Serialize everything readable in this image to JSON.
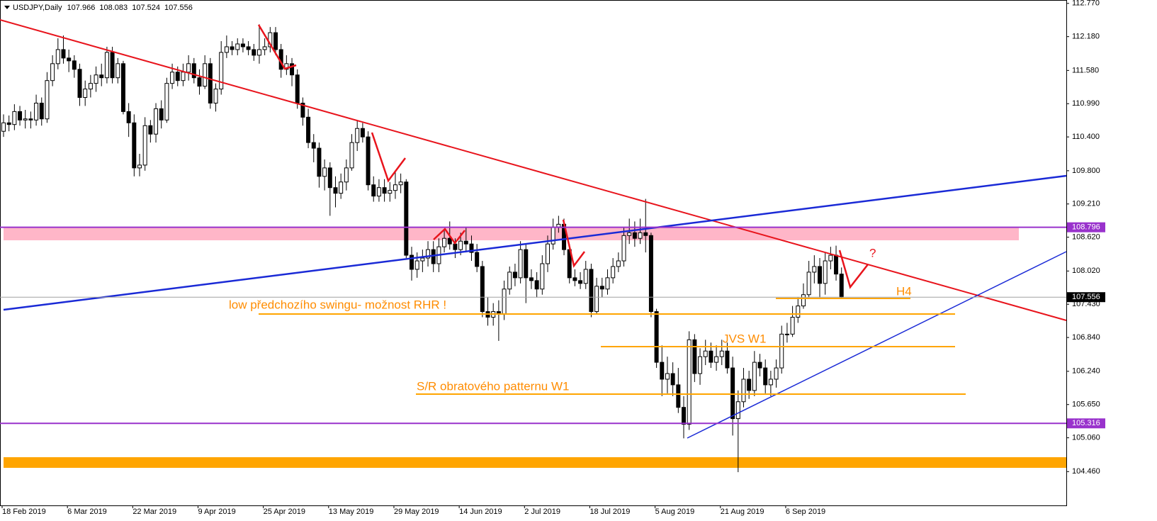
{
  "chart_data": {
    "type": "candlestick",
    "title": "USDJPY,Daily",
    "categories": [
      "18 Feb 2019",
      null,
      null,
      null,
      null,
      null,
      null,
      null,
      null,
      null,
      null,
      null,
      "6 Mar 2019",
      null,
      null,
      null,
      null,
      null,
      null,
      null,
      null,
      null,
      null,
      null,
      "22 Mar 2019",
      null,
      null,
      null,
      null,
      null,
      null,
      null,
      null,
      null,
      null,
      null,
      "9 Apr 2019",
      null,
      null,
      null,
      null,
      null,
      null,
      null,
      null,
      null,
      null,
      null,
      "25 Apr 2019",
      null,
      null,
      null,
      null,
      null,
      null,
      null,
      null,
      null,
      null,
      null,
      "13 May 2019",
      null,
      null,
      null,
      null,
      null,
      null,
      null,
      null,
      null,
      null,
      null,
      "29 May 2019",
      null,
      null,
      null,
      null,
      null,
      null,
      null,
      null,
      null,
      null,
      null,
      "14 Jun 2019",
      null,
      null,
      null,
      null,
      null,
      null,
      null,
      null,
      null,
      null,
      null,
      "2 Jul 2019",
      null,
      null,
      null,
      null,
      null,
      null,
      null,
      null,
      null,
      null,
      null,
      "18 Jul 2019",
      null,
      null,
      null,
      null,
      null,
      null,
      null,
      null,
      null,
      null,
      null,
      "5 Aug 2019",
      null,
      null,
      null,
      null,
      null,
      null,
      null,
      null,
      null,
      null,
      null,
      "21 Aug 2019",
      null,
      null,
      null,
      null,
      null,
      null,
      null,
      null,
      null,
      null,
      null,
      "6 Sep 2019",
      null,
      null,
      null,
      null,
      null,
      null,
      null,
      null,
      null,
      null
    ],
    "open": [
      110.5,
      110.65,
      110.62,
      110.85,
      110.7,
      110.72,
      110.7,
      111.0,
      110.72,
      111.4,
      111.7,
      111.95,
      111.8,
      111.75,
      111.6,
      111.1,
      111.25,
      111.35,
      111.5,
      111.45,
      111.9,
      111.45,
      111.7,
      110.85,
      110.65,
      109.85,
      109.9,
      110.6,
      110.45,
      110.9,
      110.7,
      111.35,
      111.55,
      111.4,
      111.55,
      111.7,
      111.45,
      111.3,
      111.7,
      111.0,
      111.25,
      111.9,
      112.0,
      111.95,
      112.05,
      112.0,
      111.95,
      111.85,
      111.95,
      112.0,
      112.25,
      111.95,
      111.6,
      111.7,
      111.5,
      111.0,
      110.75,
      110.3,
      110.2,
      109.7,
      109.85,
      109.5,
      109.4,
      109.6,
      109.85,
      110.3,
      110.55,
      110.4,
      109.55,
      109.35,
      109.5,
      109.4,
      109.45,
      109.55,
      109.6,
      108.3,
      108.05,
      108.2,
      108.25,
      108.4,
      108.15,
      108.45,
      108.6,
      108.5,
      108.4,
      108.55,
      108.5,
      108.35,
      108.1,
      107.3,
      107.2,
      107.3,
      107.25,
      107.7,
      108.0,
      107.9,
      108.4,
      107.9,
      107.85,
      107.7,
      108.15,
      108.5,
      108.8,
      108.85,
      108.4,
      107.9,
      107.85,
      107.8,
      108.05,
      107.3,
      107.75,
      107.7,
      107.9,
      108.1,
      108.2,
      108.65,
      108.7,
      108.6,
      108.7,
      108.65,
      107.3,
      106.4,
      106.1,
      106.2,
      106.0,
      105.6,
      105.3,
      106.8,
      106.2,
      106.5,
      106.6,
      106.4,
      106.5,
      106.6,
      106.3,
      105.4,
      105.7,
      106.1,
      105.9,
      106.4,
      106.3,
      106.0,
      106.1,
      106.3,
      106.9,
      106.9,
      107.2,
      107.4,
      107.6,
      108.0,
      108.1,
      107.8,
      108.2,
      108.3,
      107.966
    ],
    "high": [
      110.8,
      110.78,
      110.98,
      110.95,
      110.88,
      110.85,
      111.15,
      111.1,
      111.55,
      111.85,
      112.15,
      112.2,
      111.95,
      111.85,
      111.7,
      111.4,
      111.5,
      111.65,
      111.7,
      112.0,
      112.0,
      111.8,
      111.75,
      111.0,
      110.8,
      110.1,
      110.75,
      110.7,
      111.0,
      111.05,
      111.45,
      111.7,
      111.65,
      111.7,
      111.85,
      111.8,
      111.6,
      111.85,
      111.8,
      111.35,
      112.1,
      112.2,
      112.1,
      112.15,
      112.15,
      112.1,
      112.05,
      112.4,
      112.15,
      112.35,
      112.35,
      112.05,
      111.85,
      111.8,
      111.6,
      111.1,
      110.9,
      110.45,
      110.3,
      110.0,
      109.95,
      109.7,
      109.75,
      110.0,
      110.45,
      110.7,
      110.65,
      110.5,
      109.7,
      109.65,
      109.65,
      109.6,
      109.8,
      109.75,
      109.65,
      108.45,
      108.35,
      108.4,
      108.55,
      108.55,
      108.6,
      108.75,
      108.9,
      108.6,
      108.7,
      108.8,
      108.65,
      108.5,
      108.2,
      107.55,
      107.45,
      107.5,
      107.85,
      108.1,
      108.15,
      108.55,
      108.5,
      108.05,
      108.0,
      108.3,
      108.65,
      108.95,
      109.0,
      108.95,
      108.5,
      108.05,
      108.0,
      108.2,
      108.15,
      107.9,
      107.9,
      108.05,
      108.25,
      108.35,
      108.8,
      108.95,
      108.9,
      108.95,
      109.3,
      108.7,
      107.35,
      106.7,
      106.5,
      106.4,
      106.3,
      105.8,
      106.95,
      106.9,
      106.65,
      106.8,
      106.75,
      106.7,
      106.8,
      106.75,
      106.5,
      105.9,
      106.3,
      106.25,
      106.6,
      106.55,
      106.45,
      106.25,
      106.45,
      107.05,
      107.1,
      107.4,
      107.55,
      107.8,
      108.2,
      108.3,
      108.25,
      108.35,
      108.45,
      108.47,
      108.083
    ],
    "low": [
      110.4,
      110.5,
      110.52,
      110.6,
      110.55,
      110.55,
      110.6,
      110.6,
      110.65,
      111.3,
      111.6,
      111.7,
      111.55,
      111.45,
      110.95,
      110.95,
      111.1,
      111.2,
      111.3,
      111.35,
      111.35,
      111.35,
      110.8,
      110.4,
      109.7,
      109.7,
      109.8,
      110.3,
      110.3,
      110.55,
      110.65,
      111.25,
      111.3,
      111.3,
      111.4,
      111.35,
      111.15,
      111.25,
      110.9,
      110.85,
      111.15,
      111.8,
      111.85,
      111.85,
      111.9,
      111.85,
      111.75,
      111.7,
      111.85,
      111.9,
      111.85,
      111.45,
      111.5,
      111.3,
      110.9,
      110.6,
      110.2,
      109.95,
      109.5,
      109.45,
      109.0,
      109.15,
      109.3,
      109.45,
      109.8,
      110.15,
      110.3,
      109.45,
      109.25,
      109.25,
      109.25,
      109.25,
      109.3,
      109.4,
      108.25,
      107.85,
      107.9,
      108.0,
      108.1,
      108.0,
      108.0,
      108.35,
      108.4,
      108.25,
      108.3,
      108.35,
      108.2,
      108.0,
      107.2,
      107.05,
      107.05,
      106.78,
      107.15,
      107.6,
      107.75,
      107.8,
      107.45,
      107.7,
      107.55,
      107.6,
      108.0,
      108.4,
      108.7,
      108.3,
      107.8,
      107.75,
      107.7,
      107.7,
      107.2,
      107.25,
      107.55,
      107.6,
      107.8,
      108.0,
      108.1,
      108.5,
      108.45,
      108.5,
      108.35,
      107.2,
      106.3,
      105.8,
      105.85,
      105.8,
      105.5,
      105.05,
      105.2,
      106.05,
      106.0,
      106.35,
      106.3,
      106.25,
      106.35,
      106.2,
      105.1,
      104.45,
      105.6,
      105.75,
      105.8,
      106.15,
      105.85,
      105.8,
      105.95,
      106.2,
      106.75,
      106.85,
      107.1,
      107.35,
      107.55,
      107.8,
      107.55,
      107.6,
      108.05,
      107.85,
      107.524
    ],
    "close": [
      110.65,
      110.62,
      110.85,
      110.7,
      110.72,
      110.7,
      111.0,
      110.72,
      111.4,
      111.7,
      111.95,
      111.8,
      111.75,
      111.6,
      111.1,
      111.25,
      111.35,
      111.5,
      111.45,
      111.9,
      111.45,
      111.7,
      110.85,
      110.65,
      109.85,
      109.9,
      110.6,
      110.45,
      110.9,
      110.7,
      111.35,
      111.55,
      111.4,
      111.55,
      111.7,
      111.45,
      111.3,
      111.7,
      111.0,
      111.25,
      111.9,
      112.0,
      111.95,
      112.05,
      112.0,
      111.95,
      111.85,
      111.95,
      112.0,
      112.25,
      111.95,
      111.6,
      111.7,
      111.5,
      111.0,
      110.75,
      110.3,
      110.2,
      109.7,
      109.85,
      109.5,
      109.4,
      109.6,
      109.85,
      110.3,
      110.55,
      110.4,
      109.55,
      109.35,
      109.5,
      109.4,
      109.45,
      109.55,
      109.6,
      108.3,
      108.05,
      108.2,
      108.25,
      108.4,
      108.15,
      108.45,
      108.6,
      108.5,
      108.4,
      108.55,
      108.5,
      108.35,
      108.1,
      107.3,
      107.2,
      107.3,
      107.25,
      107.7,
      108.0,
      107.9,
      108.4,
      107.9,
      107.85,
      107.7,
      108.15,
      108.5,
      108.8,
      108.85,
      108.4,
      107.9,
      107.85,
      107.8,
      108.05,
      107.3,
      107.75,
      107.7,
      107.9,
      108.1,
      108.2,
      108.65,
      108.7,
      108.6,
      108.7,
      108.65,
      107.3,
      106.4,
      106.1,
      106.2,
      106.0,
      105.6,
      105.3,
      106.8,
      106.2,
      106.5,
      106.6,
      106.4,
      106.5,
      106.6,
      106.3,
      105.4,
      105.7,
      106.1,
      105.9,
      106.4,
      106.3,
      106.0,
      106.1,
      106.3,
      106.9,
      106.9,
      107.2,
      107.4,
      107.6,
      108.0,
      108.1,
      107.8,
      108.2,
      108.3,
      107.966,
      107.556
    ],
    "up_color": "#ffffff",
    "down_color": "#000000",
    "ylim": [
      103.86,
      112.83
    ],
    "yticks": [
      {
        "value": 112.77,
        "label": "112.770"
      },
      {
        "value": 112.18,
        "label": "112.180"
      },
      {
        "value": 111.58,
        "label": "111.580"
      },
      {
        "value": 110.99,
        "label": "110.990"
      },
      {
        "value": 110.4,
        "label": "110.400"
      },
      {
        "value": 109.8,
        "label": "109.800"
      },
      {
        "value": 109.21,
        "label": "109.210"
      },
      {
        "value": 108.62,
        "label": "108.620"
      },
      {
        "value": 108.02,
        "label": "108.020"
      },
      {
        "value": 107.43,
        "label": "107.430"
      },
      {
        "value": 106.84,
        "label": "106.840"
      },
      {
        "value": 106.24,
        "label": "106.240"
      },
      {
        "value": 105.65,
        "label": "105.650"
      },
      {
        "value": 105.06,
        "label": "105.060"
      },
      {
        "value": 104.46,
        "label": "104.460"
      }
    ],
    "levels": [
      {
        "value": 108.796,
        "color": "#9932cc"
      },
      {
        "value": 105.316,
        "color": "#9932cc"
      }
    ],
    "annotations": [
      "low předchozího swingu- možnost RHR !",
      "JVS W1",
      "S/R obratového patternu W1",
      "H4",
      "?"
    ]
  }
}
